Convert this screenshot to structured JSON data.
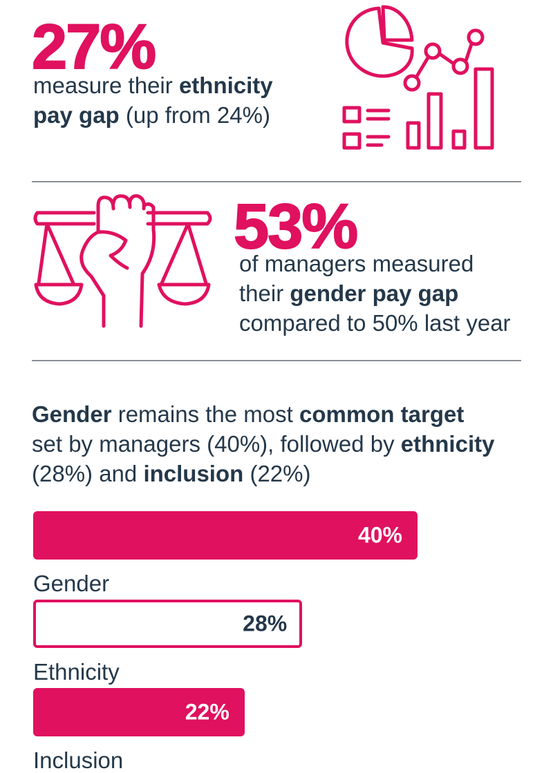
{
  "colors": {
    "accent": "#e0115f",
    "text": "#24384a",
    "rule": "#8a8f94",
    "white": "#ffffff"
  },
  "stat1": {
    "value": "27%",
    "text_a": "measure their ",
    "text_b": "ethnicity",
    "text_c": "pay gap",
    "text_d": " (up from 24%)"
  },
  "stat2": {
    "value": "53%",
    "line1": "of managers measured",
    "line2_a": "their ",
    "line2_b": "gender pay gap",
    "line3": "compared to 50% last year"
  },
  "intro": {
    "w1": "Gender",
    "w2": " remains the most ",
    "w3": "common target",
    "w4": "set by managers (40%), followed by ",
    "w5": "ethnicity",
    "w6": "(28%) and ",
    "w7": "inclusion",
    "w8": " (22%)"
  },
  "icons": [
    "pie-chart-bar-chart-icon",
    "fist-scales-icon"
  ],
  "chart_data": {
    "type": "bar",
    "orientation": "horizontal",
    "categories": [
      "Gender",
      "Ethnicity",
      "Inclusion"
    ],
    "values": [
      40,
      28,
      22
    ],
    "value_labels": [
      "40%",
      "28%",
      "22%"
    ],
    "fills": [
      "#e0115f",
      "#ffffff",
      "#e0115f"
    ],
    "label_colors": [
      "#ffffff",
      "#24384a",
      "#ffffff"
    ],
    "xlim": [
      0,
      40
    ],
    "grid": false
  }
}
